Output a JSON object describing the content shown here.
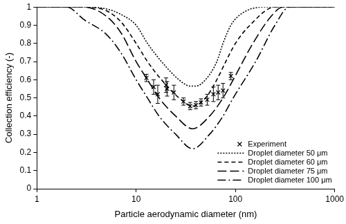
{
  "chart_data": {
    "type": "scatter",
    "x_label": "Particle aerodynamic diameter (nm)",
    "y_label": "Collection efficiency (-)",
    "log": "x",
    "grid": false,
    "legend": "lower right",
    "xlim": [
      1,
      1000
    ],
    "xticks": [
      1,
      10,
      100,
      1000
    ],
    "ylim": [
      0,
      1
    ],
    "yticks": [
      0,
      0.1,
      0.2,
      0.3,
      0.4,
      0.5,
      0.6,
      0.7,
      0.8,
      0.9,
      1
    ],
    "series": [
      {
        "name": "Experiment",
        "type": "scatter",
        "marker": "x",
        "color": "#000000",
        "x": [
          12.7,
          15,
          16.5,
          20,
          20.5,
          24,
          30,
          35,
          40,
          45,
          52,
          60,
          67,
          75,
          90
        ],
        "values": [
          0.61,
          0.56,
          0.52,
          0.57,
          0.55,
          0.53,
          0.48,
          0.455,
          0.46,
          0.475,
          0.49,
          0.52,
          0.53,
          0.54,
          0.62
        ],
        "errors": [
          0.02,
          0.04,
          0.05,
          0.04,
          0.04,
          0.04,
          0.02,
          0.02,
          0.02,
          0.02,
          0.03,
          0.04,
          0.04,
          0.04,
          0.02
        ]
      },
      {
        "name": "Droplet diameter 50 μm",
        "type": "line",
        "line_style": "dotted",
        "color": "#000000",
        "x": [
          1,
          3,
          5,
          7,
          10,
          13,
          18,
          27,
          35,
          40,
          50,
          65,
          75,
          90,
          120,
          200,
          1000
        ],
        "values": [
          1,
          1,
          0.99,
          0.96,
          0.9,
          0.8,
          0.7,
          0.6,
          0.565,
          0.565,
          0.6,
          0.7,
          0.8,
          0.9,
          0.97,
          1,
          1
        ]
      },
      {
        "name": "Droplet diameter 60 μm",
        "type": "line",
        "line_style": "dashed",
        "color": "#000000",
        "x": [
          1,
          3,
          5,
          7,
          10,
          13,
          18,
          27,
          37,
          50,
          65,
          80,
          100,
          140,
          250,
          1000
        ],
        "values": [
          1,
          1,
          0.98,
          0.92,
          0.8,
          0.7,
          0.6,
          0.5,
          0.455,
          0.5,
          0.6,
          0.7,
          0.8,
          0.9,
          1,
          1
        ]
      },
      {
        "name": "Droplet diameter 75 μm",
        "type": "line",
        "line_style": "long_dashed",
        "color": "#000000",
        "x": [
          1,
          3,
          5,
          7,
          10,
          13,
          17,
          25,
          37,
          55,
          75,
          95,
          150,
          230,
          300,
          1000
        ],
        "values": [
          1,
          1,
          0.95,
          0.86,
          0.7,
          0.6,
          0.5,
          0.4,
          0.33,
          0.4,
          0.5,
          0.6,
          0.8,
          0.95,
          1,
          1
        ]
      },
      {
        "name": "Droplet diameter 100 μm",
        "type": "line",
        "line_style": "dash_dot",
        "color": "#000000",
        "x": [
          1,
          2,
          3,
          5,
          7,
          10,
          13,
          17,
          25,
          37,
          55,
          75,
          95,
          160,
          250,
          350,
          1000
        ],
        "values": [
          1,
          1,
          0.93,
          0.85,
          0.75,
          0.6,
          0.5,
          0.4,
          0.3,
          0.22,
          0.3,
          0.4,
          0.5,
          0.7,
          0.9,
          1,
          1
        ]
      }
    ]
  }
}
